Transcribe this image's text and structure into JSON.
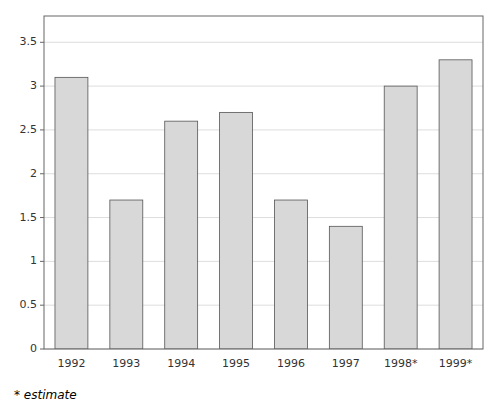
{
  "chart_data": {
    "type": "bar",
    "categories": [
      "1992",
      "1993",
      "1994",
      "1995",
      "1996",
      "1997",
      "1998*",
      "1999*"
    ],
    "values": [
      3.1,
      1.7,
      2.6,
      2.7,
      1.7,
      1.4,
      3.0,
      3.3
    ],
    "color": "#d8d8d8",
    "ylim": [
      0,
      3.8
    ],
    "yticks": [
      0,
      0.5,
      1.0,
      1.5,
      2.0,
      2.5,
      3.0,
      3.5
    ],
    "grid": true,
    "annotations": [
      "* estimate"
    ]
  }
}
